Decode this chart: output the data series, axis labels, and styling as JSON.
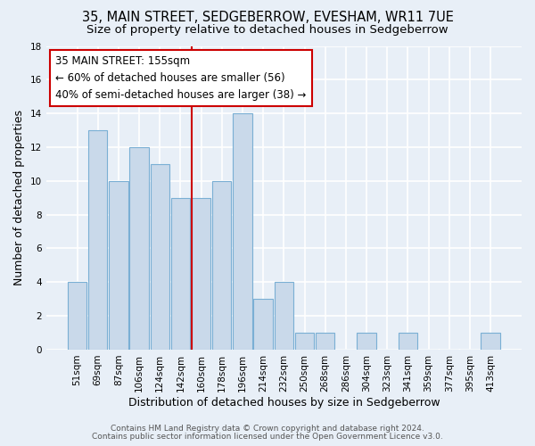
{
  "title": "35, MAIN STREET, SEDGEBERROW, EVESHAM, WR11 7UE",
  "subtitle": "Size of property relative to detached houses in Sedgeberrow",
  "xlabel": "Distribution of detached houses by size in Sedgeberrow",
  "ylabel": "Number of detached properties",
  "categories": [
    "51sqm",
    "69sqm",
    "87sqm",
    "106sqm",
    "124sqm",
    "142sqm",
    "160sqm",
    "178sqm",
    "196sqm",
    "214sqm",
    "232sqm",
    "250sqm",
    "268sqm",
    "286sqm",
    "304sqm",
    "323sqm",
    "341sqm",
    "359sqm",
    "377sqm",
    "395sqm",
    "413sqm"
  ],
  "values": [
    4,
    13,
    10,
    12,
    11,
    9,
    9,
    10,
    14,
    3,
    4,
    1,
    1,
    0,
    1,
    0,
    1,
    0,
    0,
    0,
    1
  ],
  "bar_color": "#c9d9ea",
  "bar_edge_color": "#7aafd4",
  "red_line_index": 6,
  "ylim": [
    0,
    18
  ],
  "yticks": [
    0,
    2,
    4,
    6,
    8,
    10,
    12,
    14,
    16,
    18
  ],
  "annotation_title": "35 MAIN STREET: 155sqm",
  "annotation_line1": "← 60% of detached houses are smaller (56)",
  "annotation_line2": "40% of semi-detached houses are larger (38) →",
  "annotation_box_color": "#ffffff",
  "annotation_box_edge_color": "#cc0000",
  "footer_line1": "Contains HM Land Registry data © Crown copyright and database right 2024.",
  "footer_line2": "Contains public sector information licensed under the Open Government Licence v3.0.",
  "background_color": "#e8eff7",
  "grid_color": "#ffffff",
  "title_fontsize": 10.5,
  "subtitle_fontsize": 9.5,
  "axis_label_fontsize": 9,
  "tick_fontsize": 7.5,
  "annotation_fontsize": 8.5,
  "footer_fontsize": 6.5
}
